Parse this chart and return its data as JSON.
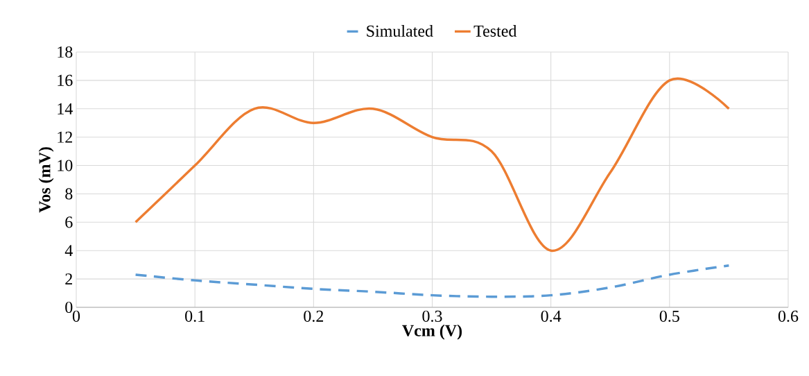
{
  "chart_data": {
    "type": "line",
    "xlabel": "Vcm (V)",
    "ylabel": "Vos (mV)",
    "x": [
      0.05,
      0.1,
      0.15,
      0.2,
      0.25,
      0.3,
      0.35,
      0.4,
      0.45,
      0.5,
      0.55
    ],
    "series": [
      {
        "name": "Simulated",
        "color": "#5b9bd5",
        "line_style": "dashed",
        "values": [
          2.3,
          1.9,
          1.6,
          1.3,
          1.1,
          0.85,
          0.75,
          0.85,
          1.4,
          2.3,
          2.95
        ]
      },
      {
        "name": "Tested",
        "color": "#ed7d31",
        "line_style": "solid",
        "values": [
          6,
          10,
          14,
          13,
          14,
          12,
          11,
          4,
          9.5,
          16,
          14
        ]
      }
    ],
    "xlim": [
      0,
      0.6
    ],
    "ylim": [
      0,
      18
    ],
    "xticks": [
      0,
      0.1,
      0.2,
      0.3,
      0.4,
      0.5,
      0.6
    ],
    "yticks": [
      0,
      2,
      4,
      6,
      8,
      10,
      12,
      14,
      16,
      18
    ],
    "grid": true,
    "legend": "top",
    "marker": "none"
  }
}
